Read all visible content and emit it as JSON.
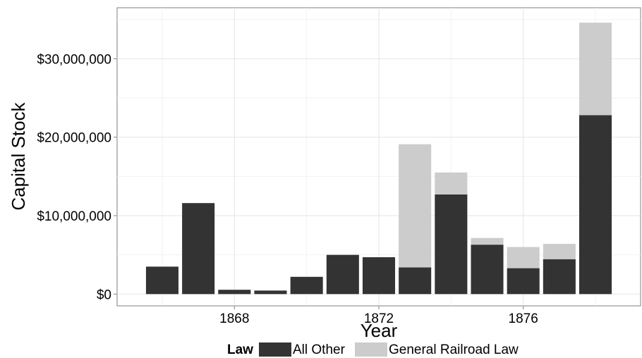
{
  "chart_data": {
    "type": "bar",
    "stacked": true,
    "xlabel": "Year",
    "ylabel": "Capital Stock",
    "x": [
      1866,
      1867,
      1868,
      1869,
      1870,
      1871,
      1872,
      1873,
      1874,
      1875,
      1876,
      1877,
      1878
    ],
    "x_ticks": [
      "1868",
      "1872",
      "1876"
    ],
    "xlim": [
      1864.75,
      1879.25
    ],
    "ylim": [
      -1500000,
      36500000
    ],
    "y_ticks": [
      "$0",
      "$10,000,000",
      "$20,000,000",
      "$30,000,000"
    ],
    "series": [
      {
        "name": "All Other",
        "color": "#333333",
        "values": [
          3500000,
          11600000,
          550000,
          450000,
          2200000,
          5000000,
          4700000,
          3400000,
          12700000,
          6300000,
          3300000,
          4450000,
          22800000
        ]
      },
      {
        "name": "General Railroad Law",
        "color": "#cccccc",
        "values": [
          0,
          0,
          0,
          0,
          0,
          0,
          0,
          15700000,
          2800000,
          850000,
          2700000,
          1950000,
          11800000
        ]
      }
    ],
    "legend": {
      "title": "Law",
      "position": "bottom"
    },
    "grid": true
  }
}
